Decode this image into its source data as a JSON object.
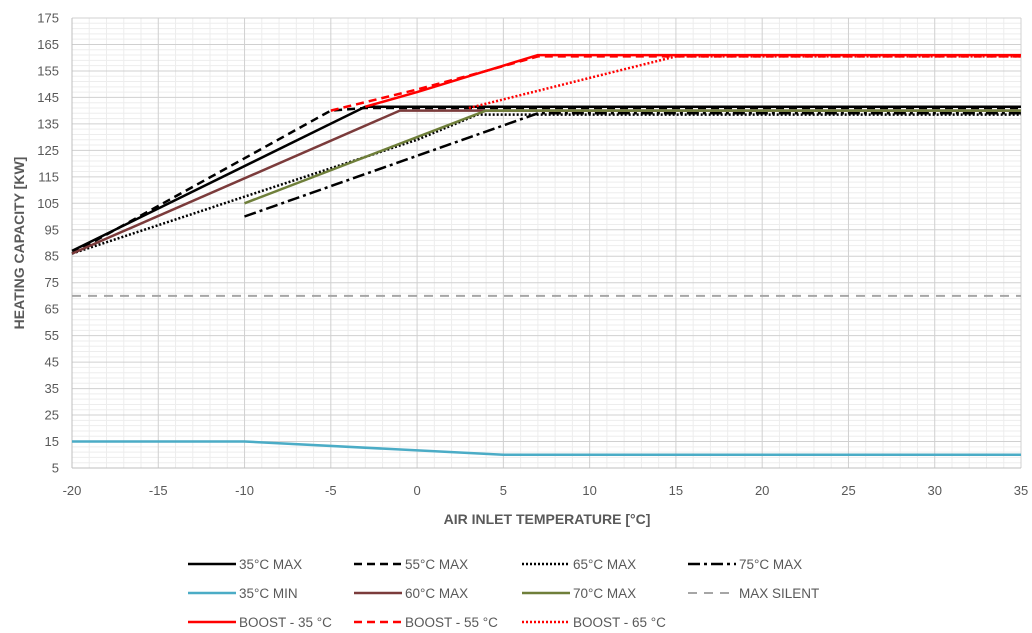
{
  "chart_data": {
    "type": "line",
    "title": "",
    "xlabel": "AIR INLET TEMPERATURE [°C]",
    "ylabel": "HEATING CAPACITY [KW]",
    "xlim": [
      -20,
      35
    ],
    "ylim": [
      5,
      175
    ],
    "x_ticks": [
      "-20",
      "-15",
      "-10",
      "-5",
      "0",
      "5",
      "10",
      "15",
      "20",
      "25",
      "30",
      "35"
    ],
    "y_ticks": [
      "5",
      "15",
      "25",
      "35",
      "45",
      "55",
      "65",
      "75",
      "85",
      "95",
      "105",
      "115",
      "125",
      "135",
      "145",
      "155",
      "165",
      "175"
    ],
    "grid": true,
    "legend_position": "bottom",
    "series": [
      {
        "name": "35°C MAX",
        "color": "#000000",
        "dash": "solid",
        "x": [
          -20,
          -3,
          35
        ],
        "y": [
          87,
          141.5,
          141.5
        ]
      },
      {
        "name": "55°C MAX",
        "color": "#000000",
        "dash": "dashed",
        "x": [
          -20,
          -5,
          -3,
          35
        ],
        "y": [
          86,
          140,
          141,
          141
        ]
      },
      {
        "name": "65°C MAX",
        "color": "#000000",
        "dash": "dotted",
        "x": [
          -20,
          0,
          3.5,
          35
        ],
        "y": [
          86,
          129,
          138.5,
          138.5
        ]
      },
      {
        "name": "75°C MAX",
        "color": "#000000",
        "dash": "dashdot",
        "x": [
          -10,
          7,
          35
        ],
        "y": [
          100,
          139,
          139
        ]
      },
      {
        "name": "35°C MIN",
        "color": "#4bacc6",
        "dash": "solid",
        "x": [
          -20,
          -10,
          5,
          35
        ],
        "y": [
          15,
          15,
          10,
          10
        ]
      },
      {
        "name": "60°C MAX",
        "color": "#7b3b3b",
        "dash": "solid",
        "x": [
          -20,
          -1,
          35
        ],
        "y": [
          86,
          140,
          140
        ]
      },
      {
        "name": "70°C MAX",
        "color": "#6f7f3a",
        "dash": "solid",
        "x": [
          -10,
          4,
          35
        ],
        "y": [
          105,
          140,
          140
        ]
      },
      {
        "name": "MAX SILENT",
        "color": "#a6a6a6",
        "dash": "longdash",
        "x": [
          -20,
          35
        ],
        "y": [
          70,
          70
        ]
      },
      {
        "name": "BOOST - 35 °C",
        "color": "#ff0000",
        "dash": "solid",
        "x": [
          -3,
          0,
          4,
          7,
          35
        ],
        "y": [
          141.5,
          147,
          155,
          161,
          161
        ]
      },
      {
        "name": "BOOST - 55 °C",
        "color": "#ff0000",
        "dash": "dashed",
        "x": [
          -5,
          0,
          4,
          7,
          35
        ],
        "y": [
          140,
          148,
          155,
          160.5,
          160.5
        ]
      },
      {
        "name": "BOOST - 65 °C",
        "color": "#ff0000",
        "dash": "dotted",
        "x": [
          3,
          15,
          35
        ],
        "y": [
          141,
          160.5,
          160.5
        ]
      }
    ]
  }
}
